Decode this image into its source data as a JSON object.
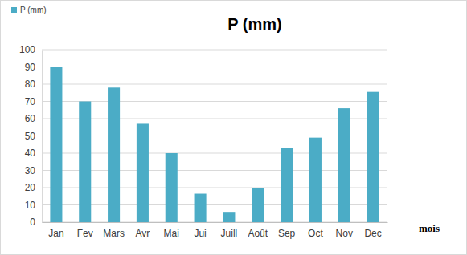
{
  "chart_data": {
    "type": "bar",
    "title": "P (mm)",
    "x_label": "mois",
    "categories": [
      "Jan",
      "Fev",
      "Mars",
      "Avr",
      "Mai",
      "Jui",
      "Juill",
      "Août",
      "Sep",
      "Oct",
      "Nov",
      "Dec"
    ],
    "series": [
      {
        "name": "P (mm)",
        "color": "#4bacc6",
        "values": [
          90,
          70,
          78,
          57,
          40,
          16.5,
          5.5,
          20,
          43,
          49,
          66,
          75.5
        ]
      }
    ],
    "ylim": [
      0,
      100
    ],
    "yticks": [
      0,
      10,
      20,
      30,
      40,
      50,
      60,
      70,
      80,
      90,
      100
    ],
    "grid": true,
    "legend": "top-left"
  }
}
